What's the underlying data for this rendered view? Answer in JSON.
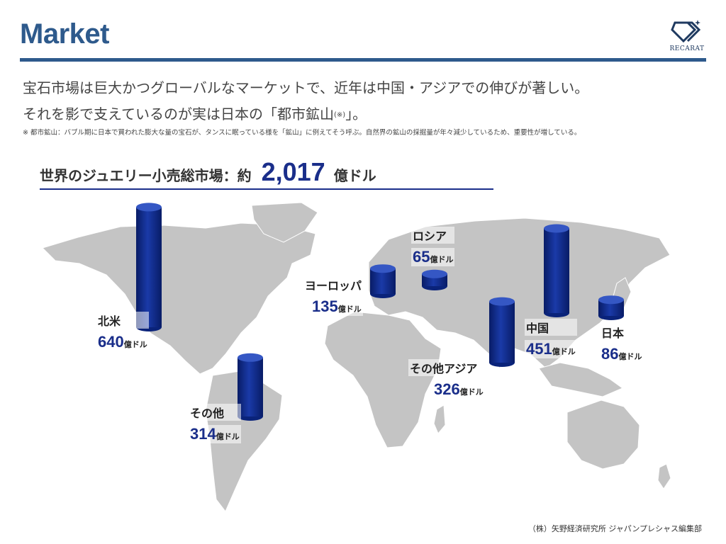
{
  "header": {
    "title": "Market",
    "logo_text": "RECARAT"
  },
  "lead": {
    "line1": "宝石市場は巨大かつグローバルなマーケットで、近年は中国・アジアでの伸びが著しい。",
    "line2_main": "それを影で支えているのが実は日本の「都市鉱山",
    "line2_mark": "(※)",
    "line2_end": "」。",
    "note": "※ 都市鉱山：バブル期に日本で買われた膨大な量の宝石が、タンスに眠っている様を「鉱山」に例えてそう呼ぶ。自然界の鉱山の採掘量が年々減少しているため、重要性が増している。"
  },
  "total": {
    "label": "世界のジュエリー小売総市場：約",
    "value": "2,017",
    "unit": "億ドル"
  },
  "chart_data": {
    "type": "bar",
    "unit": "億ドル",
    "categories": [
      "北米",
      "その他",
      "ヨーロッパ",
      "ロシア",
      "その他アジア",
      "中国",
      "日本"
    ],
    "values": [
      640,
      314,
      135,
      65,
      326,
      451,
      86
    ],
    "value_labels": [
      "640",
      "314",
      "135",
      "65",
      "326",
      "451",
      "86"
    ]
  },
  "colors": {
    "title": "#2e5a8c",
    "bar": "#0d2b8c",
    "value_text": "#1a2e8a",
    "map": "#c4c4c4"
  },
  "source": "（株）矢野経済研究所 ジャパンプレシャス編集部"
}
